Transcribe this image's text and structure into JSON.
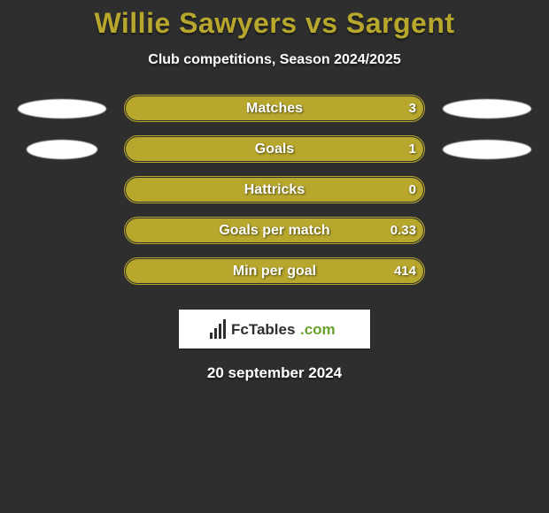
{
  "title": "Willie Sawyers vs Sargent",
  "subtitle": "Club competitions, Season 2024/2025",
  "footer_date": "20 september 2024",
  "colors": {
    "background": "#2e2e2e",
    "accent": "#b7a72d",
    "accent_border": "#b7a72d",
    "title_text": "#b7a72d",
    "text": "#ffffff"
  },
  "rows": [
    {
      "label": "Matches",
      "left_val": "",
      "right_val": "3",
      "fill_from_pct": 1,
      "fill_to_pct": 100,
      "show_left_ellipse": true,
      "show_right_ellipse": true,
      "left_ellipse_w": 100,
      "left_ellipse_h": 22,
      "left_ellipse_color": "#ffffff",
      "right_ellipse_w": 100,
      "right_ellipse_h": 22,
      "right_ellipse_color": "#ffffff"
    },
    {
      "label": "Goals",
      "left_val": "",
      "right_val": "1",
      "fill_from_pct": 1,
      "fill_to_pct": 100,
      "show_left_ellipse": true,
      "show_right_ellipse": true,
      "left_ellipse_w": 80,
      "left_ellipse_h": 22,
      "left_ellipse_color": "#ffffff",
      "right_ellipse_w": 100,
      "right_ellipse_h": 22,
      "right_ellipse_color": "#ffffff"
    },
    {
      "label": "Hattricks",
      "left_val": "",
      "right_val": "0",
      "fill_from_pct": 1,
      "fill_to_pct": 100,
      "show_left_ellipse": false,
      "show_right_ellipse": false
    },
    {
      "label": "Goals per match",
      "left_val": "",
      "right_val": "0.33",
      "fill_from_pct": 1,
      "fill_to_pct": 100,
      "show_left_ellipse": false,
      "show_right_ellipse": false
    },
    {
      "label": "Min per goal",
      "left_val": "",
      "right_val": "414",
      "fill_from_pct": 1,
      "fill_to_pct": 100,
      "show_left_ellipse": false,
      "show_right_ellipse": false
    }
  ],
  "logo_text": "FcTables.com"
}
